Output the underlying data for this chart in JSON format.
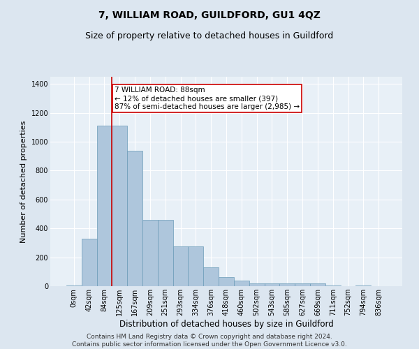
{
  "title": "7, WILLIAM ROAD, GUILDFORD, GU1 4QZ",
  "subtitle": "Size of property relative to detached houses in Guildford",
  "xlabel": "Distribution of detached houses by size in Guildford",
  "ylabel": "Number of detached properties",
  "categories": [
    "0sqm",
    "42sqm",
    "84sqm",
    "125sqm",
    "167sqm",
    "209sqm",
    "251sqm",
    "293sqm",
    "334sqm",
    "376sqm",
    "418sqm",
    "460sqm",
    "502sqm",
    "543sqm",
    "585sqm",
    "627sqm",
    "669sqm",
    "711sqm",
    "752sqm",
    "794sqm",
    "836sqm"
  ],
  "values": [
    5,
    330,
    1110,
    1110,
    940,
    460,
    460,
    275,
    275,
    130,
    65,
    40,
    20,
    20,
    20,
    20,
    20,
    5,
    0,
    5,
    0
  ],
  "bar_color": "#aec6dc",
  "bar_edge_color": "#6b9bb8",
  "bar_edge_width": 0.5,
  "vline_x_index": 2,
  "vline_color": "#cc0000",
  "annotation_line1": "7 WILLIAM ROAD: 88sqm",
  "annotation_line2": "← 12% of detached houses are smaller (397)",
  "annotation_line3": "87% of semi-detached houses are larger (2,985) →",
  "annotation_box_color": "#ffffff",
  "annotation_box_edge": "#cc0000",
  "ylim": [
    0,
    1450
  ],
  "yticks": [
    0,
    200,
    400,
    600,
    800,
    1000,
    1200,
    1400
  ],
  "bg_color": "#dce6f0",
  "plot_bg_color": "#e8f0f7",
  "grid_color": "#ffffff",
  "footer": "Contains HM Land Registry data © Crown copyright and database right 2024.\nContains public sector information licensed under the Open Government Licence v3.0.",
  "title_fontsize": 10,
  "subtitle_fontsize": 9,
  "xlabel_fontsize": 8.5,
  "ylabel_fontsize": 8,
  "tick_fontsize": 7,
  "footer_fontsize": 6.5,
  "annot_fontsize": 7.5
}
